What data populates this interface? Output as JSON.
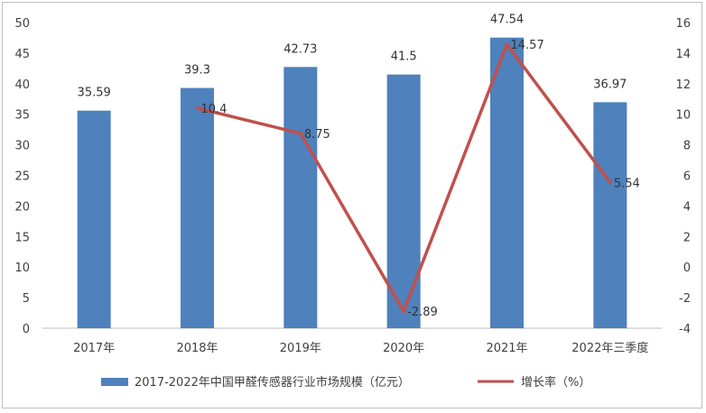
{
  "chart_data": {
    "type": "bar",
    "categories": [
      "2017年",
      "2018年",
      "2019年",
      "2020年",
      "2021年",
      "2022年三季度"
    ],
    "series": [
      {
        "name": "2017-2022年中国甲醛传感器行业市场规模（亿元）",
        "type": "bar",
        "axis": "left",
        "color": "#4f81bd",
        "values": [
          35.59,
          39.3,
          42.73,
          41.5,
          47.54,
          36.97
        ],
        "labels": [
          "35.59",
          "39.3",
          "42.73",
          "41.5",
          "47.54",
          "36.97"
        ]
      },
      {
        "name": "增长率（%）",
        "type": "line",
        "axis": "right",
        "color": "#c0504d",
        "values": [
          null,
          10.4,
          8.75,
          -2.89,
          14.57,
          5.54
        ],
        "labels": [
          "",
          "10.4",
          "8.75",
          "-2.89",
          "14.57",
          "5.54"
        ]
      }
    ],
    "y_left": {
      "min": 0,
      "max": 50,
      "step": 5,
      "ticks": [
        "0",
        "5",
        "10",
        "15",
        "20",
        "25",
        "30",
        "35",
        "40",
        "45",
        "50"
      ]
    },
    "y_right": {
      "min": -4,
      "max": 16,
      "step": 2,
      "ticks": [
        "-4",
        "-2",
        "0",
        "2",
        "4",
        "6",
        "8",
        "10",
        "12",
        "14",
        "16"
      ]
    },
    "grid": false,
    "legend": "bottom"
  }
}
